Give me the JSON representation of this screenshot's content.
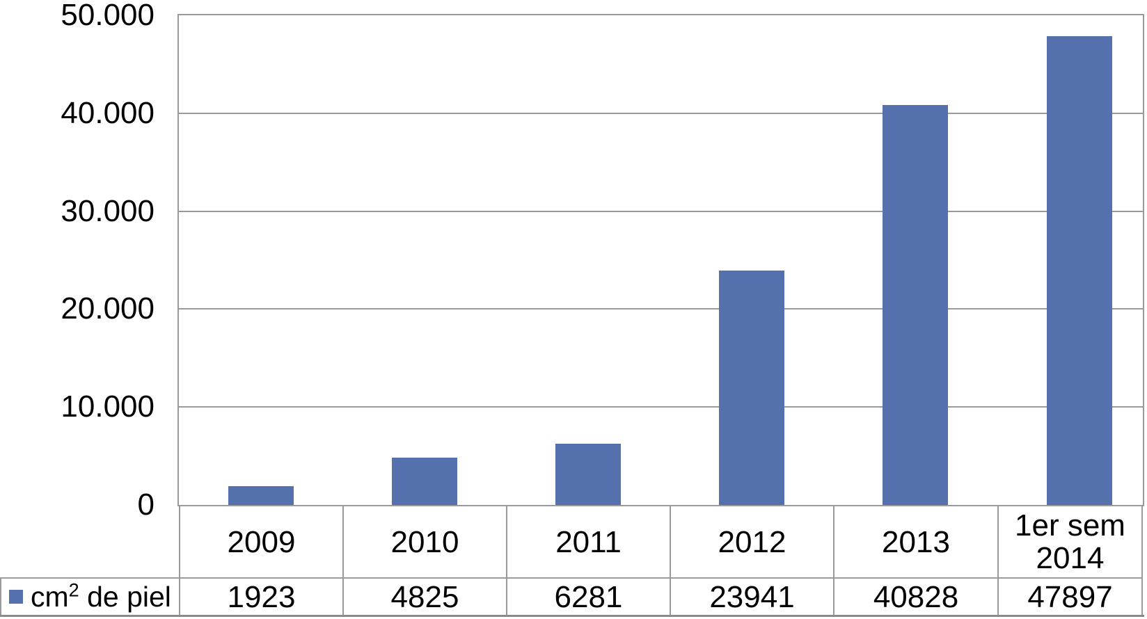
{
  "chart_data": {
    "type": "bar",
    "title": "",
    "xlabel": "",
    "ylabel": "",
    "categories": [
      "2009",
      "2010",
      "2011",
      "2012",
      "2013",
      "1er sem 2014"
    ],
    "series": [
      {
        "name": "cm² de piel",
        "values": [
          1923,
          4825,
          6281,
          23941,
          40828,
          47897
        ]
      }
    ],
    "ylim": [
      0,
      50000
    ],
    "yticks": [
      {
        "value": 50000,
        "label": "50.000"
      },
      {
        "value": 40000,
        "label": "40.000"
      },
      {
        "value": 30000,
        "label": "30.000"
      },
      {
        "value": 20000,
        "label": "20.000"
      },
      {
        "value": 10000,
        "label": "10.000"
      },
      {
        "value": 0,
        "label": "0"
      }
    ],
    "grid": true,
    "legend_position": "bottom-left of data table",
    "data_table_shown": true,
    "bar_color": "#5571AD",
    "grid_color": "#9A9A9A"
  },
  "legend": {
    "swatch_color": "#5571AD",
    "text_prefix": "cm",
    "text_superscript": "2",
    "text_suffix": " de piel"
  }
}
